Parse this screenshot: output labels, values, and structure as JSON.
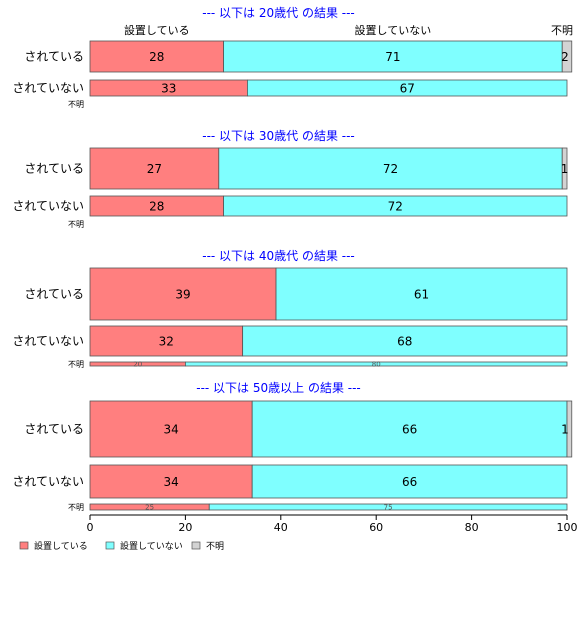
{
  "chart_data": {
    "type": "bar",
    "orientation": "horizontal",
    "stacked": "percent",
    "xlim": [
      0,
      100
    ],
    "x_ticks": [
      "0",
      "20",
      "40",
      "60",
      "80",
      "100"
    ],
    "column_headers": [
      "設置している",
      "設置していない",
      "不明"
    ],
    "legend": {
      "placement": "bottom-left",
      "entries": [
        "設置している",
        "設置していない",
        "不明"
      ]
    },
    "series_colors": [
      "#ff7f7f",
      "#7fffff",
      "#d3d3d3"
    ],
    "title_color": "#0000ff",
    "panels": [
      {
        "title": "--- 以下は 20歳代 の結果 ---",
        "rows": [
          {
            "label": "されている",
            "values": [
              28,
              71,
              2
            ]
          },
          {
            "label": "されていない",
            "values": [
              33,
              67,
              0
            ]
          },
          {
            "label": "不明",
            "values": [
              0,
              0,
              0
            ]
          }
        ]
      },
      {
        "title": "--- 以下は 30歳代 の結果 ---",
        "rows": [
          {
            "label": "されている",
            "values": [
              27,
              72,
              1
            ]
          },
          {
            "label": "されていない",
            "values": [
              28,
              72,
              0
            ]
          },
          {
            "label": "不明",
            "values": [
              0,
              0,
              0
            ]
          }
        ]
      },
      {
        "title": "--- 以下は 40歳代 の結果 ---",
        "rows": [
          {
            "label": "されている",
            "values": [
              39,
              61,
              0
            ]
          },
          {
            "label": "されていない",
            "values": [
              32,
              68,
              0
            ]
          },
          {
            "label": "不明",
            "values": [
              20,
              80,
              0
            ]
          }
        ]
      },
      {
        "title": "--- 以下は 50歳以上 の結果 ---",
        "rows": [
          {
            "label": "されている",
            "values": [
              34,
              66,
              1
            ]
          },
          {
            "label": "されていない",
            "values": [
              34,
              66,
              0
            ]
          },
          {
            "label": "不明",
            "values": [
              25,
              75,
              0
            ]
          }
        ]
      }
    ]
  }
}
